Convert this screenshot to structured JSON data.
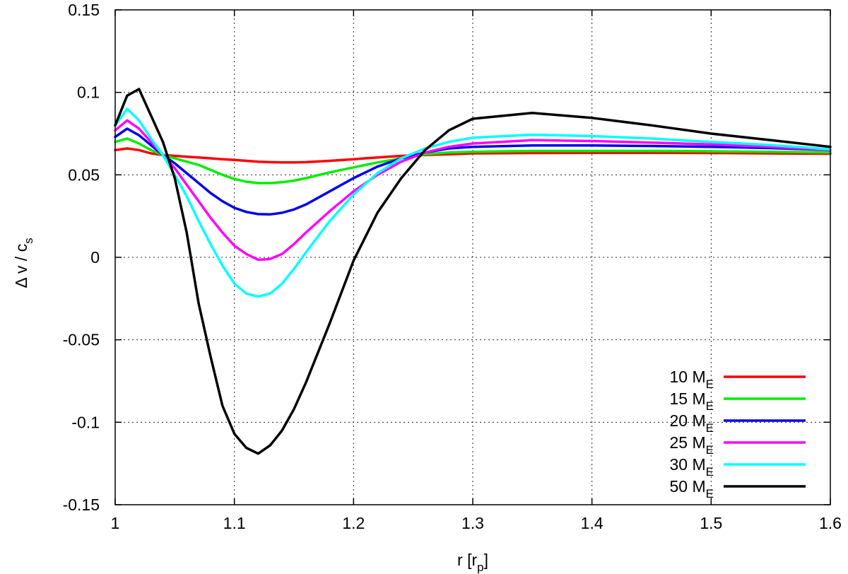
{
  "chart_data": {
    "type": "line",
    "title": "",
    "xlabel": {
      "main": "r [r",
      "sub": "p",
      "end": "]"
    },
    "ylabel": {
      "main": "Δ v / c",
      "sub": "s"
    },
    "xlim": [
      1.0,
      1.6
    ],
    "ylim": [
      -0.15,
      0.15
    ],
    "xticks": [
      {
        "value": 1.0,
        "label": "1"
      },
      {
        "value": 1.1,
        "label": "1.1"
      },
      {
        "value": 1.2,
        "label": "1.2"
      },
      {
        "value": 1.3,
        "label": "1.3"
      },
      {
        "value": 1.4,
        "label": "1.4"
      },
      {
        "value": 1.5,
        "label": "1.5"
      },
      {
        "value": 1.6,
        "label": "1.6"
      }
    ],
    "yticks": [
      {
        "value": -0.15,
        "label": "-0.15"
      },
      {
        "value": -0.1,
        "label": "-0.1"
      },
      {
        "value": -0.05,
        "label": "-0.05"
      },
      {
        "value": 0.0,
        "label": "0"
      },
      {
        "value": 0.05,
        "label": "0.05"
      },
      {
        "value": 0.1,
        "label": "0.1"
      },
      {
        "value": 0.15,
        "label": "0.15"
      }
    ],
    "grid": true,
    "legend_position": "bottom-right",
    "x": [
      1.0,
      1.01,
      1.02,
      1.03,
      1.04,
      1.05,
      1.06,
      1.07,
      1.08,
      1.09,
      1.1,
      1.11,
      1.12,
      1.13,
      1.14,
      1.15,
      1.16,
      1.18,
      1.2,
      1.22,
      1.24,
      1.26,
      1.28,
      1.3,
      1.35,
      1.4,
      1.45,
      1.5,
      1.55,
      1.6
    ],
    "series": [
      {
        "name": "10 M",
        "name_sub": "E",
        "color": "#ff0000",
        "values": [
          0.065,
          0.066,
          0.065,
          0.063,
          0.062,
          0.0615,
          0.061,
          0.0605,
          0.06,
          0.0595,
          0.059,
          0.0585,
          0.058,
          0.0577,
          0.0575,
          0.0575,
          0.0577,
          0.0585,
          0.0595,
          0.0605,
          0.0615,
          0.062,
          0.0625,
          0.063,
          0.0632,
          0.0633,
          0.0633,
          0.0632,
          0.063,
          0.0628
        ]
      },
      {
        "name": "15 M",
        "name_sub": "E",
        "color": "#00ee00",
        "values": [
          0.07,
          0.072,
          0.069,
          0.065,
          0.062,
          0.06,
          0.058,
          0.056,
          0.053,
          0.05,
          0.0475,
          0.0458,
          0.045,
          0.045,
          0.0455,
          0.0465,
          0.048,
          0.0515,
          0.0545,
          0.0575,
          0.06,
          0.0625,
          0.0635,
          0.064,
          0.0645,
          0.0645,
          0.0645,
          0.0643,
          0.064,
          0.0635
        ]
      },
      {
        "name": "20 M",
        "name_sub": "E",
        "color": "#0000ee",
        "values": [
          0.073,
          0.078,
          0.074,
          0.068,
          0.062,
          0.057,
          0.051,
          0.045,
          0.039,
          0.034,
          0.03,
          0.0275,
          0.0262,
          0.026,
          0.027,
          0.029,
          0.032,
          0.04,
          0.048,
          0.055,
          0.06,
          0.0635,
          0.066,
          0.067,
          0.0678,
          0.0678,
          0.0675,
          0.067,
          0.0662,
          0.065
        ]
      },
      {
        "name": "25 M",
        "name_sub": "E",
        "color": "#ff00ff",
        "values": [
          0.077,
          0.083,
          0.078,
          0.07,
          0.062,
          0.054,
          0.044,
          0.034,
          0.024,
          0.015,
          0.007,
          0.002,
          -0.0015,
          -0.001,
          0.002,
          0.008,
          0.015,
          0.028,
          0.04,
          0.05,
          0.058,
          0.0635,
          0.067,
          0.069,
          0.071,
          0.0705,
          0.0695,
          0.0685,
          0.067,
          0.065
        ]
      },
      {
        "name": "30 M",
        "name_sub": "E",
        "color": "#00ffff",
        "values": [
          0.08,
          0.09,
          0.083,
          0.072,
          0.062,
          0.05,
          0.037,
          0.022,
          0.008,
          -0.005,
          -0.016,
          -0.022,
          -0.0238,
          -0.022,
          -0.016,
          -0.007,
          0.003,
          0.022,
          0.038,
          0.051,
          0.06,
          0.066,
          0.07,
          0.0725,
          0.0743,
          0.0735,
          0.072,
          0.07,
          0.068,
          0.0655
        ]
      },
      {
        "name": "50 M",
        "name_sub": "E",
        "color": "#000000",
        "values": [
          0.08,
          0.098,
          0.102,
          0.086,
          0.07,
          0.048,
          0.015,
          -0.028,
          -0.06,
          -0.09,
          -0.107,
          -0.1155,
          -0.119,
          -0.114,
          -0.105,
          -0.092,
          -0.076,
          -0.04,
          -0.002,
          0.027,
          0.048,
          0.065,
          0.077,
          0.084,
          0.0875,
          0.0845,
          0.08,
          0.075,
          0.071,
          0.067
        ]
      }
    ]
  }
}
